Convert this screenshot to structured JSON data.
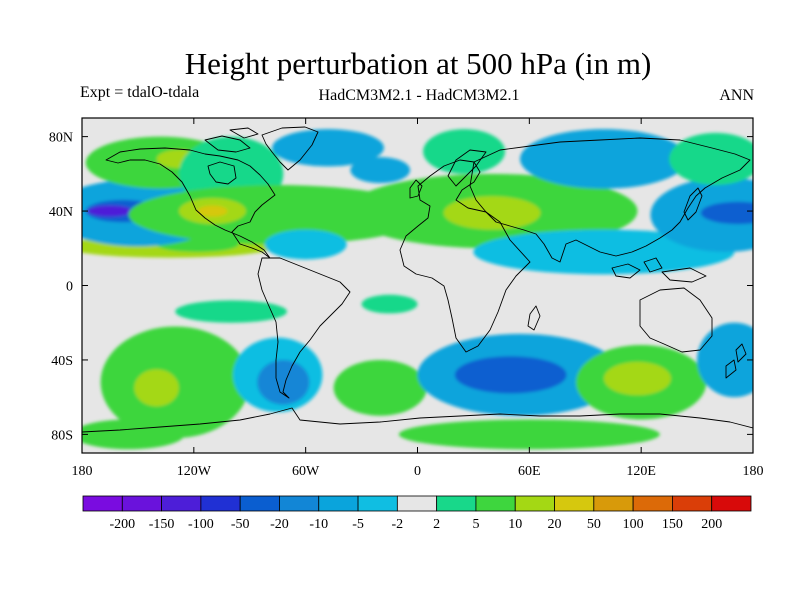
{
  "title": "Height perturbation at 500 hPa (in m)",
  "subtitle_left": "Expt = tdalO-tdala",
  "subtitle_center": "HadCM3M2.1 - HadCM3M2.1",
  "subtitle_right": "ANN",
  "chart_data": {
    "type": "contour_map",
    "variable": "500 hPa geopotential height perturbation (m)",
    "x_range": [
      -180,
      180
    ],
    "y_range": [
      -90,
      90
    ],
    "x_ticks": [
      {
        "value": -180,
        "label": "180"
      },
      {
        "value": -120,
        "label": "120W"
      },
      {
        "value": -60,
        "label": "60W"
      },
      {
        "value": 0,
        "label": "0"
      },
      {
        "value": 60,
        "label": "60E"
      },
      {
        "value": 120,
        "label": "120E"
      },
      {
        "value": 180,
        "label": "180"
      }
    ],
    "y_ticks": [
      {
        "value": 80,
        "label": "80N"
      },
      {
        "value": 40,
        "label": "40N"
      },
      {
        "value": 0,
        "label": "0"
      },
      {
        "value": -40,
        "label": "40S"
      },
      {
        "value": -80,
        "label": "80S"
      }
    ],
    "colorbar": {
      "colors": [
        "#7a0ce0",
        "#6a12dc",
        "#4d1ed8",
        "#2030d4",
        "#0a5ed0",
        "#1286d6",
        "#0aa4dc",
        "#10bee2",
        "#e6e6e6",
        "#18d88a",
        "#3ed63e",
        "#a4d814",
        "#d6c80e",
        "#d89a0a",
        "#dc6a08",
        "#da3e08",
        "#d80a0a"
      ],
      "labels": [
        "-200",
        "-150",
        "-100",
        "-50",
        "-20",
        "-10",
        "-5",
        "-2",
        "2",
        "5",
        "10",
        "20",
        "50",
        "100",
        "150",
        "200"
      ]
    },
    "regions": [
      {
        "sign": "+",
        "level": 3,
        "lon": -133,
        "lat": 21,
        "rx": 57,
        "ry": 6
      },
      {
        "sign": "+",
        "level": 2,
        "lon": -118,
        "lat": 22,
        "rx": 22,
        "ry": 4
      },
      {
        "sign": "-",
        "level": 2,
        "lon": -150,
        "lat": 39,
        "rx": 46,
        "ry": 18
      },
      {
        "sign": "-",
        "level": 4,
        "lon": -158,
        "lat": 40,
        "rx": 20,
        "ry": 6
      },
      {
        "sign": "-",
        "level": 6,
        "lon": -165,
        "lat": 40,
        "rx": 12,
        "ry": 3
      },
      {
        "sign": "+",
        "level": 2,
        "lon": -138,
        "lat": 66,
        "rx": 40,
        "ry": 14
      },
      {
        "sign": "+",
        "level": 3,
        "lon": -128,
        "lat": 68,
        "rx": 12,
        "ry": 5
      },
      {
        "sign": "+",
        "level": 1,
        "lon": -100,
        "lat": 60,
        "rx": 28,
        "ry": 20
      },
      {
        "sign": "+",
        "level": 2,
        "lon": -75,
        "lat": 38,
        "rx": 80,
        "ry": 16
      },
      {
        "sign": "+",
        "level": 3,
        "lon": -110,
        "lat": 40,
        "rx": 18,
        "ry": 7
      },
      {
        "sign": "+",
        "level": 4,
        "lon": -110,
        "lat": 40,
        "rx": 8,
        "ry": 3
      },
      {
        "sign": "-",
        "level": 2,
        "lon": -48,
        "lat": 74,
        "rx": 30,
        "ry": 10
      },
      {
        "sign": "-",
        "level": 1,
        "lon": -60,
        "lat": 22,
        "rx": 22,
        "ry": 8
      },
      {
        "sign": "-",
        "level": 2,
        "lon": -20,
        "lat": 62,
        "rx": 16,
        "ry": 7
      },
      {
        "sign": "+",
        "level": 2,
        "lon": 40,
        "lat": 40,
        "rx": 78,
        "ry": 20
      },
      {
        "sign": "+",
        "level": 3,
        "lon": 40,
        "lat": 39,
        "rx": 26,
        "ry": 9
      },
      {
        "sign": "+",
        "level": 1,
        "lon": 25,
        "lat": 72,
        "rx": 22,
        "ry": 12
      },
      {
        "sign": "-",
        "level": 2,
        "lon": 100,
        "lat": 68,
        "rx": 45,
        "ry": 16
      },
      {
        "sign": "-",
        "level": 1,
        "lon": 100,
        "lat": 18,
        "rx": 70,
        "ry": 12
      },
      {
        "sign": "-",
        "level": 2,
        "lon": 165,
        "lat": 38,
        "rx": 40,
        "ry": 20
      },
      {
        "sign": "-",
        "level": 4,
        "lon": 172,
        "lat": 39,
        "rx": 20,
        "ry": 6
      },
      {
        "sign": "+",
        "level": 1,
        "lon": 160,
        "lat": 68,
        "rx": 25,
        "ry": 14
      },
      {
        "sign": "+",
        "level": 1,
        "lon": -100,
        "lat": -14,
        "rx": 30,
        "ry": 6
      },
      {
        "sign": "+",
        "level": 1,
        "lon": -15,
        "lat": -10,
        "rx": 15,
        "ry": 5
      },
      {
        "sign": "+",
        "level": 2,
        "lon": -130,
        "lat": -52,
        "rx": 40,
        "ry": 30
      },
      {
        "sign": "+",
        "level": 3,
        "lon": -140,
        "lat": -55,
        "rx": 12,
        "ry": 10
      },
      {
        "sign": "-",
        "level": 1,
        "lon": -75,
        "lat": -48,
        "rx": 24,
        "ry": 20
      },
      {
        "sign": "-",
        "level": 3,
        "lon": -72,
        "lat": -52,
        "rx": 14,
        "ry": 12
      },
      {
        "sign": "+",
        "level": 2,
        "lon": -20,
        "lat": -55,
        "rx": 25,
        "ry": 15
      },
      {
        "sign": "-",
        "level": 2,
        "lon": 55,
        "lat": -48,
        "rx": 55,
        "ry": 22
      },
      {
        "sign": "-",
        "level": 4,
        "lon": 50,
        "lat": -48,
        "rx": 30,
        "ry": 10
      },
      {
        "sign": "+",
        "level": 2,
        "lon": 120,
        "lat": -52,
        "rx": 35,
        "ry": 20
      },
      {
        "sign": "+",
        "level": 3,
        "lon": 118,
        "lat": -50,
        "rx": 18,
        "ry": 9
      },
      {
        "sign": "-",
        "level": 2,
        "lon": 170,
        "lat": -40,
        "rx": 20,
        "ry": 20
      },
      {
        "sign": "+",
        "level": 2,
        "lon": 60,
        "lat": -80,
        "rx": 70,
        "ry": 8
      },
      {
        "sign": "+",
        "level": 2,
        "lon": -155,
        "lat": -80,
        "rx": 30,
        "ry": 8
      }
    ]
  }
}
